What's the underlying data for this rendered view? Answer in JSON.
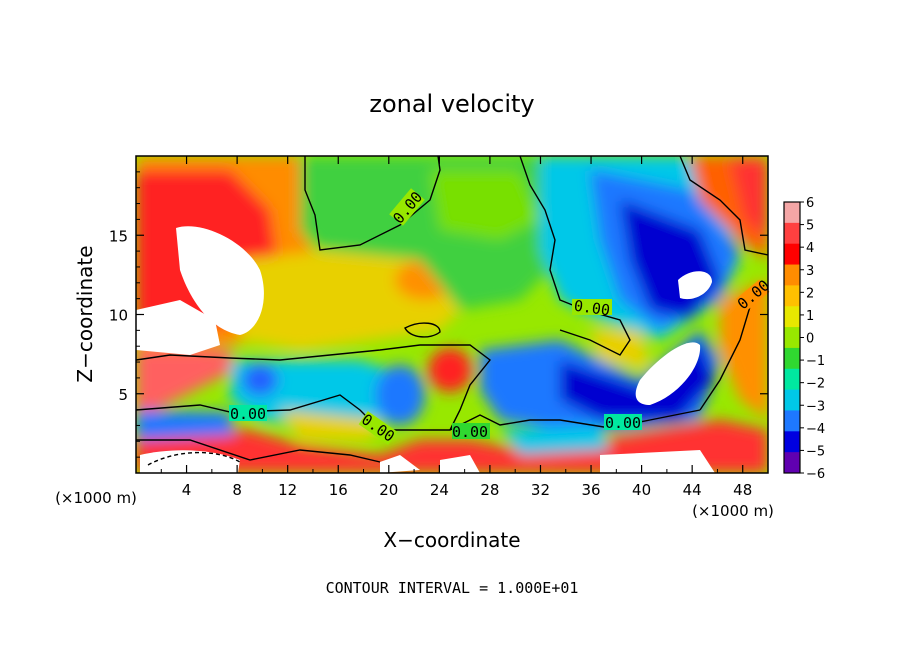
{
  "chart_data": {
    "type": "heatmap",
    "title": "zonal velocity",
    "xlabel": "X−coordinate",
    "ylabel": "Z−coordinate",
    "x_unit": "(×1000 m)",
    "y_unit": "(×1000 m)",
    "xlim": [
      0,
      50
    ],
    "ylim": [
      0,
      20
    ],
    "x_ticks": [
      "4",
      "8",
      "12",
      "16",
      "20",
      "24",
      "28",
      "32",
      "36",
      "40",
      "44",
      "48"
    ],
    "y_ticks": [
      "5",
      "10",
      "15"
    ],
    "colorbar": {
      "ticks": [
        "6",
        "5",
        "4",
        "3",
        "2",
        "1",
        "0",
        "−1",
        "−2",
        "−3",
        "−4",
        "−5",
        "−6"
      ],
      "colors": [
        "#f4a6a6",
        "#ff4040",
        "#ff0000",
        "#ff8c00",
        "#ffc000",
        "#e8e800",
        "#98e800",
        "#30d830",
        "#00e8a0",
        "#00c8e8",
        "#1e78ff",
        "#0000e0",
        "#6000b0"
      ]
    },
    "contour_labels": [
      "0.00",
      "0.00",
      "0.00",
      "0.00",
      "0.00",
      "0.00",
      "0.00"
    ],
    "footer": "CONTOUR INTERVAL = 1.000E+01"
  }
}
